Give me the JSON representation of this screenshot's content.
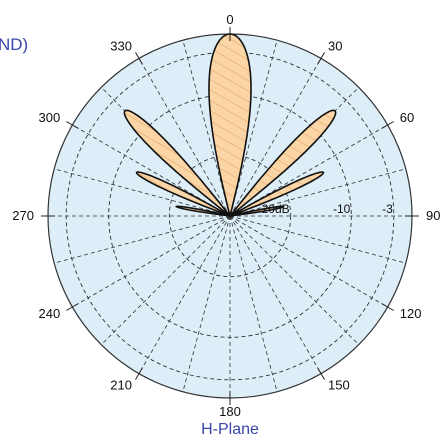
{
  "chart_data": {
    "type": "polar",
    "title_fragment": "ND)",
    "subtitle": "H-Plane",
    "angle_labels": [
      "0",
      "30",
      "60",
      "90",
      "120",
      "150",
      "180",
      "210",
      "240",
      "270",
      "300",
      "330"
    ],
    "angle_values_deg": [
      0,
      30,
      60,
      90,
      120,
      150,
      180,
      210,
      240,
      270,
      300,
      330
    ],
    "radial_labels": [
      "-3",
      "-10",
      "-20dB"
    ],
    "radial_values_db": [
      -3,
      -10,
      -20
    ],
    "radial_range_db": [
      -30,
      0
    ],
    "grid": true,
    "colors": {
      "background": "#ddeef9",
      "pattern_fill": "#fbd5a6",
      "pattern_hatch": "#e0a060",
      "pattern_stroke": "#111111",
      "grid": "#333333",
      "title": "#3a46a8"
    },
    "series": [
      {
        "lobes": [
          {
            "center_deg": 0,
            "peak_db": 0,
            "width_deg": 32
          },
          {
            "center_deg": 45,
            "peak_db": -5.5,
            "width_deg": 16
          },
          {
            "center_deg": -45,
            "peak_db": -5.5,
            "width_deg": 16
          },
          {
            "center_deg": 65,
            "peak_db": -13,
            "width_deg": 12
          },
          {
            "center_deg": -65,
            "peak_db": -13,
            "width_deg": 12
          },
          {
            "center_deg": 80,
            "peak_db": -21,
            "width_deg": 10
          },
          {
            "center_deg": -80,
            "peak_db": -21,
            "width_deg": 10
          }
        ]
      }
    ]
  }
}
